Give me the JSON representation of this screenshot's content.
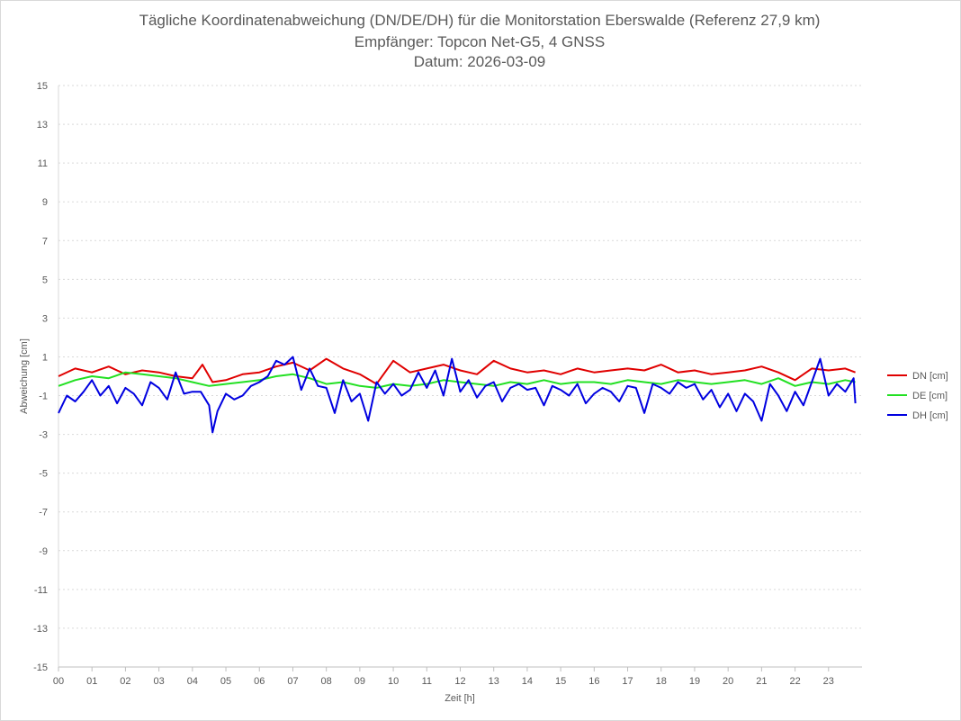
{
  "chart_data": {
    "type": "line",
    "title": [
      "Tägliche Koordinatenabweichung (DN/DE/DH) für die Monitorstation Eberswalde (Referenz 27,9 km)",
      "Empfänger: Topcon Net-G5, 4 GNSS",
      "Datum: 2026-03-09"
    ],
    "xlabel": "Zeit [h]",
    "ylabel": "Abweichung [cm]",
    "xlim": [
      0,
      24
    ],
    "ylim": [
      -15,
      15
    ],
    "xticks": [
      "00",
      "01",
      "02",
      "03",
      "04",
      "05",
      "06",
      "07",
      "08",
      "09",
      "10",
      "11",
      "12",
      "13",
      "14",
      "15",
      "16",
      "17",
      "18",
      "19",
      "20",
      "21",
      "22",
      "23"
    ],
    "yticks": [
      "15",
      "13",
      "11",
      "9",
      "7",
      "5",
      "3",
      "1",
      "-1",
      "-3",
      "-5",
      "-7",
      "-9",
      "-11",
      "-13",
      "-15"
    ],
    "grid": true,
    "legend_position": "right",
    "series": [
      {
        "name": "DN [cm]",
        "color": "#e00000",
        "x": [
          0,
          0.5,
          1,
          1.5,
          2,
          2.5,
          3,
          3.5,
          4,
          4.3,
          4.6,
          5,
          5.5,
          6,
          6.5,
          7,
          7.5,
          8,
          8.5,
          9,
          9.5,
          10,
          10.5,
          11,
          11.5,
          12,
          12.5,
          13,
          13.5,
          14,
          14.5,
          15,
          15.5,
          16,
          16.5,
          17,
          17.5,
          18,
          18.5,
          19,
          19.5,
          20,
          20.5,
          21,
          21.5,
          22,
          22.5,
          23,
          23.5,
          23.8
        ],
        "values": [
          0.0,
          0.4,
          0.2,
          0.5,
          0.1,
          0.3,
          0.2,
          0.0,
          -0.1,
          0.6,
          -0.3,
          -0.2,
          0.1,
          0.2,
          0.5,
          0.7,
          0.3,
          0.9,
          0.4,
          0.1,
          -0.4,
          0.8,
          0.2,
          0.4,
          0.6,
          0.3,
          0.1,
          0.8,
          0.4,
          0.2,
          0.3,
          0.1,
          0.4,
          0.2,
          0.3,
          0.4,
          0.3,
          0.6,
          0.2,
          0.3,
          0.1,
          0.2,
          0.3,
          0.5,
          0.2,
          -0.2,
          0.4,
          0.3,
          0.4,
          0.2
        ]
      },
      {
        "name": "DE [cm]",
        "color": "#22e022",
        "x": [
          0,
          0.5,
          1,
          1.5,
          2,
          2.5,
          3,
          3.5,
          4,
          4.5,
          5,
          5.5,
          6,
          6.5,
          7,
          7.5,
          8,
          8.5,
          9,
          9.5,
          10,
          10.5,
          11,
          11.5,
          12,
          12.5,
          13,
          13.5,
          14,
          14.5,
          15,
          15.5,
          16,
          16.5,
          17,
          17.5,
          18,
          18.5,
          19,
          19.5,
          20,
          20.5,
          21,
          21.5,
          22,
          22.5,
          23,
          23.5,
          23.8
        ],
        "values": [
          -0.5,
          -0.2,
          0.0,
          -0.1,
          0.2,
          0.1,
          0.0,
          -0.1,
          -0.3,
          -0.5,
          -0.4,
          -0.3,
          -0.2,
          0.0,
          0.1,
          -0.1,
          -0.4,
          -0.3,
          -0.5,
          -0.6,
          -0.4,
          -0.5,
          -0.4,
          -0.2,
          -0.3,
          -0.4,
          -0.5,
          -0.3,
          -0.4,
          -0.2,
          -0.4,
          -0.3,
          -0.3,
          -0.4,
          -0.2,
          -0.3,
          -0.4,
          -0.2,
          -0.3,
          -0.4,
          -0.3,
          -0.2,
          -0.4,
          -0.1,
          -0.5,
          -0.3,
          -0.4,
          -0.2,
          -0.3
        ]
      },
      {
        "name": "DH [cm]",
        "color": "#0000e0",
        "x": [
          0,
          0.25,
          0.5,
          0.75,
          1,
          1.25,
          1.5,
          1.75,
          2,
          2.25,
          2.5,
          2.75,
          3,
          3.25,
          3.5,
          3.75,
          4,
          4.25,
          4.5,
          4.6,
          4.75,
          5,
          5.25,
          5.5,
          5.75,
          6,
          6.25,
          6.5,
          6.75,
          7,
          7.25,
          7.5,
          7.75,
          8,
          8.25,
          8.5,
          8.75,
          9,
          9.25,
          9.5,
          9.75,
          10,
          10.25,
          10.5,
          10.75,
          11,
          11.25,
          11.5,
          11.75,
          12,
          12.25,
          12.5,
          12.75,
          13,
          13.25,
          13.5,
          13.75,
          14,
          14.25,
          14.5,
          14.75,
          15,
          15.25,
          15.5,
          15.75,
          16,
          16.25,
          16.5,
          16.75,
          17,
          17.25,
          17.5,
          17.75,
          18,
          18.25,
          18.5,
          18.75,
          19,
          19.25,
          19.5,
          19.75,
          20,
          20.25,
          20.5,
          20.75,
          21,
          21.25,
          21.5,
          21.75,
          22,
          22.25,
          22.5,
          22.75,
          23,
          23.25,
          23.5,
          23.75,
          23.8
        ],
        "values": [
          -1.9,
          -1.0,
          -1.3,
          -0.8,
          -0.2,
          -1.0,
          -0.5,
          -1.4,
          -0.6,
          -0.9,
          -1.5,
          -0.3,
          -0.6,
          -1.2,
          0.2,
          -0.9,
          -0.8,
          -0.8,
          -1.5,
          -2.9,
          -1.8,
          -0.9,
          -1.2,
          -1.0,
          -0.5,
          -0.3,
          0.0,
          0.8,
          0.6,
          1.0,
          -0.7,
          0.4,
          -0.5,
          -0.6,
          -1.9,
          -0.2,
          -1.3,
          -0.9,
          -2.3,
          -0.3,
          -0.9,
          -0.4,
          -1.0,
          -0.7,
          0.2,
          -0.6,
          0.3,
          -1.0,
          0.9,
          -0.8,
          -0.2,
          -1.1,
          -0.5,
          -0.3,
          -1.3,
          -0.6,
          -0.4,
          -0.7,
          -0.6,
          -1.5,
          -0.5,
          -0.7,
          -1.0,
          -0.4,
          -1.4,
          -0.9,
          -0.6,
          -0.8,
          -1.3,
          -0.5,
          -0.6,
          -1.9,
          -0.4,
          -0.6,
          -0.9,
          -0.3,
          -0.6,
          -0.4,
          -1.2,
          -0.7,
          -1.6,
          -0.9,
          -1.8,
          -0.9,
          -1.3,
          -2.3,
          -0.4,
          -1.0,
          -1.8,
          -0.8,
          -1.5,
          -0.3,
          0.9,
          -1.0,
          -0.4,
          -0.8,
          -0.1,
          -1.4
        ]
      }
    ]
  }
}
